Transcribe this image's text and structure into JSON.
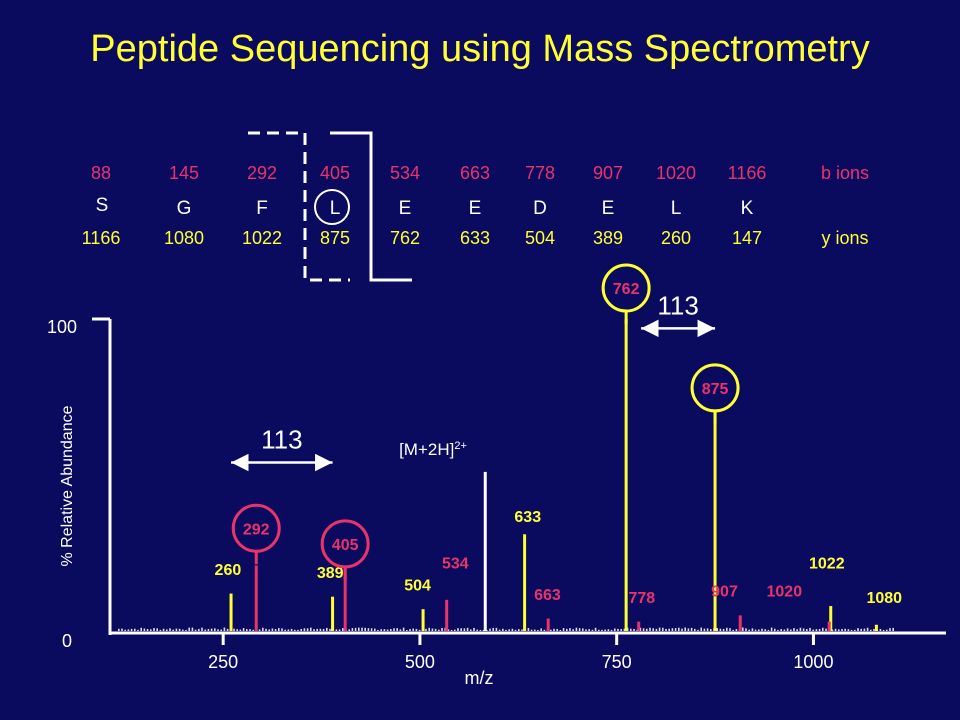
{
  "title": "Peptide Sequencing using Mass Spectrometry",
  "colors": {
    "background": "#0a0a5e",
    "title": "#ffff33",
    "b_ion": "#e8336b",
    "y_ion": "#ffff33",
    "neutral": "#ffffff",
    "green": "#44dd44",
    "axis": "#ffffff"
  },
  "sequence_table": {
    "b_ions": [
      "88",
      "145",
      "292",
      "405",
      "534",
      "663",
      "778",
      "907",
      "1020",
      "1166"
    ],
    "residues": [
      "S",
      "G",
      "F",
      "L",
      "E",
      "E",
      "D",
      "E",
      "L",
      "K"
    ],
    "y_ions": [
      "1166",
      "1080",
      "1022",
      "875",
      "762",
      "633",
      "504",
      "389",
      "260",
      "147"
    ],
    "b_label": "b ions",
    "y_label": "y ions",
    "circled_residue": "L"
  },
  "chart_data": {
    "type": "bar",
    "xlabel": "m/z",
    "ylabel": "% Relative Abundance",
    "xlim": [
      110,
      1220
    ],
    "ylim": [
      0,
      100
    ],
    "xticks": [
      250,
      500,
      750,
      1000
    ],
    "yticks": [
      0,
      100
    ],
    "series": [
      {
        "name": "y ions",
        "color": "#ffff33",
        "x": [
          260,
          389,
          504,
          633,
          762,
          875,
          1022,
          1080
        ],
        "values": [
          12,
          11,
          7,
          31,
          100,
          70,
          8,
          2
        ]
      },
      {
        "name": "b ions",
        "color": "#e8336b",
        "x": [
          292,
          405,
          534,
          663,
          778,
          907,
          1020
        ],
        "values": [
          21,
          20,
          10,
          4,
          3,
          5,
          3
        ]
      },
      {
        "name": "[M+2H]2+",
        "color": "#ffffff",
        "x": [
          583
        ],
        "values": [
          51
        ]
      }
    ],
    "peak_labels": [
      {
        "text": "260",
        "mz": 256,
        "level": 18,
        "color": "#ffff33"
      },
      {
        "text": "292",
        "mz": 292,
        "level": 31,
        "color": "#e8336b",
        "circled": true
      },
      {
        "text": "389",
        "mz": 386,
        "level": 17,
        "color": "#ffff33"
      },
      {
        "text": "405",
        "mz": 405,
        "level": 26,
        "color": "#e8336b",
        "circled": true
      },
      {
        "text": "504",
        "mz": 497,
        "level": 13,
        "color": "#ffff33"
      },
      {
        "text": "534",
        "mz": 545,
        "level": 20,
        "color": "#e8336b"
      },
      {
        "text": "633",
        "mz": 637,
        "level": 35,
        "color": "#ffff33"
      },
      {
        "text": "663",
        "mz": 662,
        "level": 10,
        "color": "#e8336b"
      },
      {
        "text": "762",
        "mz": 762,
        "level": 108,
        "color": "#e8336b",
        "circled": true,
        "ring": "#ffff33"
      },
      {
        "text": "778",
        "mz": 782,
        "level": 9,
        "color": "#e8336b"
      },
      {
        "text": "875",
        "mz": 875,
        "level": 76,
        "color": "#e8336b",
        "circled": true,
        "ring": "#ffff33"
      },
      {
        "text": "907",
        "mz": 887,
        "level": 11,
        "color": "#e8336b"
      },
      {
        "text": "1020",
        "mz": 963,
        "level": 11,
        "color": "#e8336b"
      },
      {
        "text": "1022",
        "mz": 1017,
        "level": 20,
        "color": "#ffff33"
      },
      {
        "text": "1080",
        "mz": 1090,
        "level": 9,
        "color": "#ffff33"
      }
    ],
    "precursor_label": {
      "text": "[M+2H]",
      "superscript": "2+"
    },
    "mass_differences": [
      {
        "text": "113",
        "from": 260,
        "to": 389,
        "level": 54
      },
      {
        "text": "113",
        "from": 781,
        "to": 875,
        "level": 97
      }
    ]
  }
}
